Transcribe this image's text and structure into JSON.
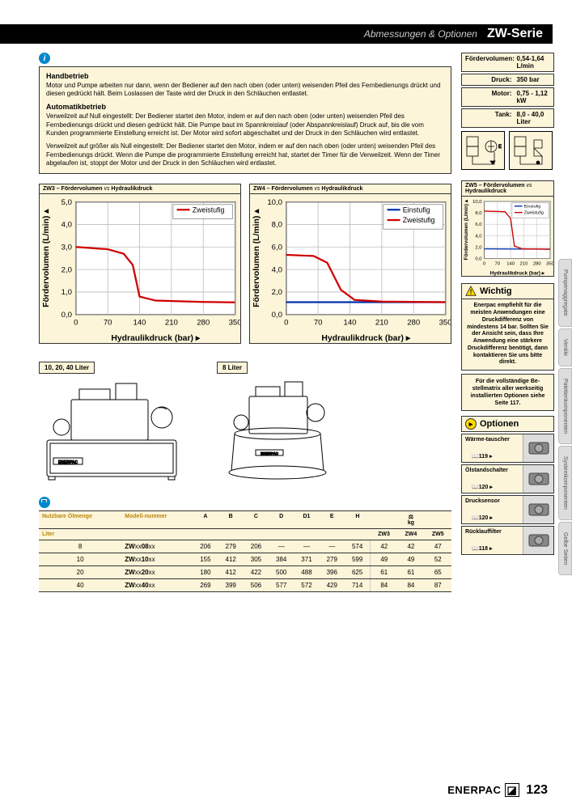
{
  "header": {
    "subtitle": "Abmessungen & Optionen",
    "title": "ZW-Serie"
  },
  "info": {
    "h1": "Handbetrieb",
    "p1": "Motor und Pumpe arbeiten nur dann, wenn der Bediener auf den nach oben (oder unten) weisenden Pfeil des Fernbedienungs drückt und diesen gedrückt hält. Beim Loslassen der Taste wird der Druck in den Schläuchen entlastet.",
    "h2": "Automatikbetrieb",
    "p2": "Verweilzeit auf Null eingestellt: Der Bediener startet den Motor, indem er auf den nach oben (oder unten) weisenden Pfeil des Fernbedienungs drückt und diesen gedrückt hält. Die Pumpe baut im Spannkreislauf (oder Abspannkreislauf) Druck auf, bis die vom Kunden programmierte Einstellung erreicht ist. Der Motor wird sofort abgeschaltet und der Druck in den Schläuchen wird entlastet.",
    "p3": "Verweilzeit auf größer als Null eingestellt: Der Bediener startet den Motor, indem er auf den nach oben (oder unten) weisenden Pfeil des Fernbedienungs drückt. Wenn die Pumpe die programmierte Einstellung erreicht hat, startet der Timer für die Verweilzeit. Wenn der Timer abgelaufen ist, stoppt der Motor und der Druck in den Schläuchen wird entlastet."
  },
  "specs": [
    {
      "label": "Fördervolumen:",
      "value": "0,54-1,64 L/min"
    },
    {
      "label": "Druck:",
      "value": "350 bar"
    },
    {
      "label": "Motor:",
      "value": "0,75 - 1,12 kW"
    },
    {
      "label": "Tank:",
      "value": "8,0 - 40,0 Liter"
    }
  ],
  "charts": {
    "zw3": {
      "title": "ZW3 – Fördervolumen",
      "sub": "Hydraulikdruck",
      "ylabel": "Fördervolumen (L/min)",
      "xlabel": "Hydraulikdruck (bar)",
      "ymax": 5.0,
      "ytick": 1.0,
      "xmax": 350,
      "xtick": 70,
      "legend": [
        "Zweistufig"
      ],
      "colors": [
        "#d00000"
      ],
      "series": [
        [
          [
            0,
            3.0
          ],
          [
            70,
            2.9
          ],
          [
            105,
            2.7
          ],
          [
            125,
            2.2
          ],
          [
            140,
            0.8
          ],
          [
            175,
            0.62
          ],
          [
            280,
            0.56
          ],
          [
            350,
            0.54
          ]
        ]
      ],
      "bg": "#fdf5d9",
      "grid": "#bbb"
    },
    "zw4": {
      "title": "ZW4 – Fördervolumen",
      "sub": "Hydraulikdruck",
      "ylabel": "Fördervolumen (L/min)",
      "xlabel": "Hydraulikdruck (bar)",
      "ymax": 10.0,
      "ytick": 2.0,
      "xmax": 350,
      "xtick": 70,
      "legend": [
        "Einstufig",
        "Zweistufig"
      ],
      "colors": [
        "#0033aa",
        "#d00000"
      ],
      "series": [
        [
          [
            0,
            1.1
          ],
          [
            350,
            1.1
          ]
        ],
        [
          [
            0,
            5.3
          ],
          [
            60,
            5.2
          ],
          [
            90,
            4.6
          ],
          [
            120,
            2.2
          ],
          [
            150,
            1.3
          ],
          [
            210,
            1.15
          ],
          [
            350,
            1.1
          ]
        ]
      ],
      "bg": "#fdf5d9",
      "grid": "#bbb"
    },
    "zw5": {
      "title": "ZW5 – Fördervolumen",
      "sub": "Hydraulikdruck",
      "ylabel": "Fördervolumen (L/min)",
      "xlabel": "Hydraulikdruck (bar)",
      "ymax": 10.0,
      "ytick": 2.0,
      "xmax": 350,
      "xtick": 70,
      "legend": [
        "Einstufig",
        "Zweistufig"
      ],
      "colors": [
        "#0033aa",
        "#d00000"
      ],
      "series": [
        [
          [
            0,
            1.7
          ],
          [
            350,
            1.65
          ]
        ],
        [
          [
            0,
            8.3
          ],
          [
            110,
            8.2
          ],
          [
            140,
            7.0
          ],
          [
            160,
            2.2
          ],
          [
            200,
            1.7
          ],
          [
            350,
            1.64
          ]
        ]
      ],
      "bg": "#fdf5d9",
      "grid": "#bbb"
    }
  },
  "wichtig": {
    "title": "Wichtig",
    "text": "Enerpac empfiehlt für die meisten Anwendungen eine Druckdifferenz von mindestens 14 bar. Sollten Sie der Ansicht sein, dass Ihre Anwendung eine stärkere Druckdifferenz benötigt, dann kontaktieren Sie uns bitte direkt."
  },
  "matrix_note": "Für die vollständige Be-stellmatrix aller werkseitig installierten Optionen siehe Seite 117.",
  "optionen": {
    "title": "Optionen",
    "items": [
      {
        "label": "Wärme-tauscher",
        "page": "119"
      },
      {
        "label": "Ölstandschalter",
        "page": "120"
      },
      {
        "label": "Drucksensor",
        "page": "120"
      },
      {
        "label": "Rücklauffilter",
        "page": "118"
      }
    ]
  },
  "pumps": {
    "label1": "10, 20, 40 Liter",
    "label2": "8 Liter",
    "brand": "ENERPAC"
  },
  "dimtable": {
    "headers": {
      "col1": "Nutzbare Ölmenge",
      "col2": "Modell-nummer",
      "unit1": "Liter",
      "weight": "kg",
      "p1": "ZW3",
      "p2": "ZW4",
      "p3": "ZW5"
    },
    "cols": [
      "A",
      "B",
      "C",
      "D",
      "D1",
      "E",
      "H"
    ],
    "rows": [
      {
        "oil": "8",
        "model": "ZWxx08xx",
        "d": [
          "206",
          "279",
          "206",
          "—",
          "—",
          "—",
          "574"
        ],
        "w": [
          "42",
          "42",
          "47"
        ]
      },
      {
        "oil": "10",
        "model": "ZWxx10xx",
        "d": [
          "155",
          "412",
          "305",
          "384",
          "371",
          "279",
          "599"
        ],
        "w": [
          "49",
          "49",
          "52"
        ]
      },
      {
        "oil": "20",
        "model": "ZWxx20xx",
        "d": [
          "180",
          "412",
          "422",
          "500",
          "488",
          "396",
          "625"
        ],
        "w": [
          "61",
          "61",
          "65"
        ]
      },
      {
        "oil": "40",
        "model": "ZWxx40xx",
        "d": [
          "269",
          "399",
          "506",
          "577",
          "572",
          "429",
          "714"
        ],
        "w": [
          "84",
          "84",
          "87"
        ]
      }
    ]
  },
  "sidebar": [
    "Pumpenaggregate",
    "Ventile",
    "Palettenkomponenten",
    "Systemkomponenten",
    "Gelbe Seiten"
  ],
  "footer": {
    "logo": "ENERPAC",
    "page": "123"
  }
}
